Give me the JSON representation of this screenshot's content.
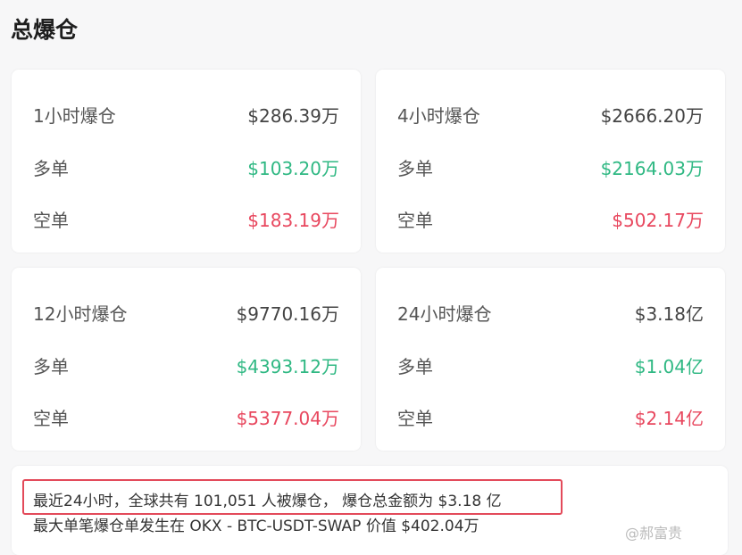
{
  "title": "总爆仓",
  "colors": {
    "long": "#2fb883",
    "short": "#e8475e"
  },
  "cards": [
    {
      "label": "1小时爆仓",
      "total": "$286.39万",
      "long_label": "多单",
      "long": "$103.20万",
      "short_label": "空单",
      "short": "$183.19万"
    },
    {
      "label": "4小时爆仓",
      "total": "$2666.20万",
      "long_label": "多单",
      "long": "$2164.03万",
      "short_label": "空单",
      "short": "$502.17万"
    },
    {
      "label": "12小时爆仓",
      "total": "$9770.16万",
      "long_label": "多单",
      "long": "$4393.12万",
      "short_label": "空单",
      "short": "$5377.04万"
    },
    {
      "label": "24小时爆仓",
      "total": "$3.18亿",
      "long_label": "多单",
      "long": "$1.04亿",
      "short_label": "空单",
      "short": "$2.14亿"
    }
  ],
  "summary": {
    "line1": "最近24小时，全球共有 101,051 人被爆仓， 爆仓总金额为 $3.18 亿",
    "line2": "最大单笔爆仓单发生在 OKX - BTC-USDT-SWAP 价值 $402.04万"
  },
  "watermark": "@郝富贵"
}
